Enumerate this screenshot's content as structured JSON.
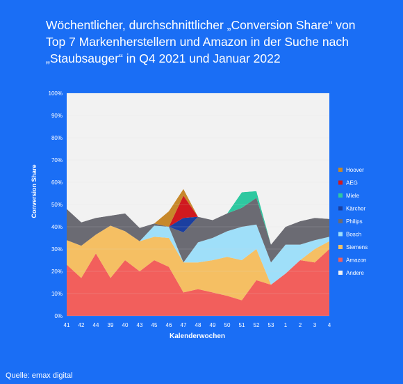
{
  "title_lines": [
    "Wöchentlicher, durchschnittlicher „Conversion Share“ von",
    "Top 7 Markenherstellern und Amazon in der Suche nach",
    "„Staubsauger“ in Q4 2021 und Januar 2022"
  ],
  "source": "Quelle: emax digital",
  "chart_data": {
    "type": "area",
    "stacked": true,
    "xlabel": "Kalenderwochen",
    "ylabel": "Conversion Share",
    "ylim": [
      0,
      100
    ],
    "y_ticks": [
      "0%",
      "10%",
      "20%",
      "30%",
      "40%",
      "50%",
      "60%",
      "70%",
      "80%",
      "90%",
      "100%"
    ],
    "categories": [
      "41",
      "42",
      "44",
      "39",
      "40",
      "43",
      "45",
      "46",
      "47",
      "48",
      "49",
      "50",
      "51",
      "52",
      "53",
      "1",
      "2",
      "3",
      "4"
    ],
    "grid": true,
    "legend_position": "right",
    "series": [
      {
        "name": "Amazon",
        "color": "#f25f5c",
        "values": [
          23,
          17,
          28,
          17,
          25,
          20,
          25,
          22,
          10.5,
          12,
          10.5,
          9,
          7,
          16,
          14,
          19,
          25,
          24,
          30
        ]
      },
      {
        "name": "Siemens",
        "color": "#f5bf63",
        "values": [
          11,
          14.5,
          8.5,
          23.5,
          13,
          13.5,
          10.5,
          13,
          13.5,
          12,
          14.5,
          17.5,
          18,
          14,
          0,
          0,
          0,
          6,
          3.5
        ]
      },
      {
        "name": "Bosch",
        "color": "#9fdff9",
        "values": [
          0,
          0,
          0,
          0,
          0,
          0,
          5,
          5,
          0,
          9,
          10,
          11.5,
          15,
          11,
          10,
          13,
          7,
          4,
          2
        ]
      },
      {
        "name": "Philips",
        "color": "#6b6b73",
        "values": [
          14,
          10.5,
          7.5,
          4.5,
          8,
          6,
          1,
          0,
          13.5,
          11.5,
          8,
          8,
          8.5,
          12,
          8,
          8,
          10.5,
          10,
          8
        ]
      },
      {
        "name": "Kärcher",
        "color": "#1b3fa0",
        "values": [
          0,
          0,
          0,
          0,
          0,
          0,
          0,
          0,
          6.5,
          0,
          0,
          0,
          0,
          0,
          0,
          0,
          0,
          0,
          0
        ]
      },
      {
        "name": "Miele",
        "color": "#2ec8a0",
        "values": [
          0,
          0,
          0,
          0,
          0,
          0,
          0,
          0,
          0,
          0,
          0,
          0,
          7,
          3,
          0,
          0,
          0,
          0,
          0
        ]
      },
      {
        "name": "AEG",
        "color": "#d0191f",
        "values": [
          0,
          0,
          0,
          0,
          0,
          0,
          0,
          0,
          10,
          0,
          0,
          0,
          0,
          0,
          0,
          0,
          0,
          0,
          0
        ]
      },
      {
        "name": "Hoover",
        "color": "#c7882b",
        "values": [
          0,
          0,
          0,
          0,
          0,
          0,
          0,
          7,
          3,
          0,
          0,
          0,
          0,
          0,
          0,
          0,
          0,
          0,
          0
        ]
      },
      {
        "name": "Andere",
        "color": "#f2f2f2",
        "values": [
          52,
          58,
          56,
          55,
          54,
          60.5,
          58.5,
          53,
          43,
          55.5,
          57,
          54,
          44.5,
          44,
          68,
          60,
          57.5,
          56,
          56.5
        ]
      }
    ],
    "legend_order": [
      "Hoover",
      "AEG",
      "Miele",
      "Kärcher",
      "Philips",
      "Bosch",
      "Siemens",
      "Amazon",
      "Andere"
    ]
  }
}
